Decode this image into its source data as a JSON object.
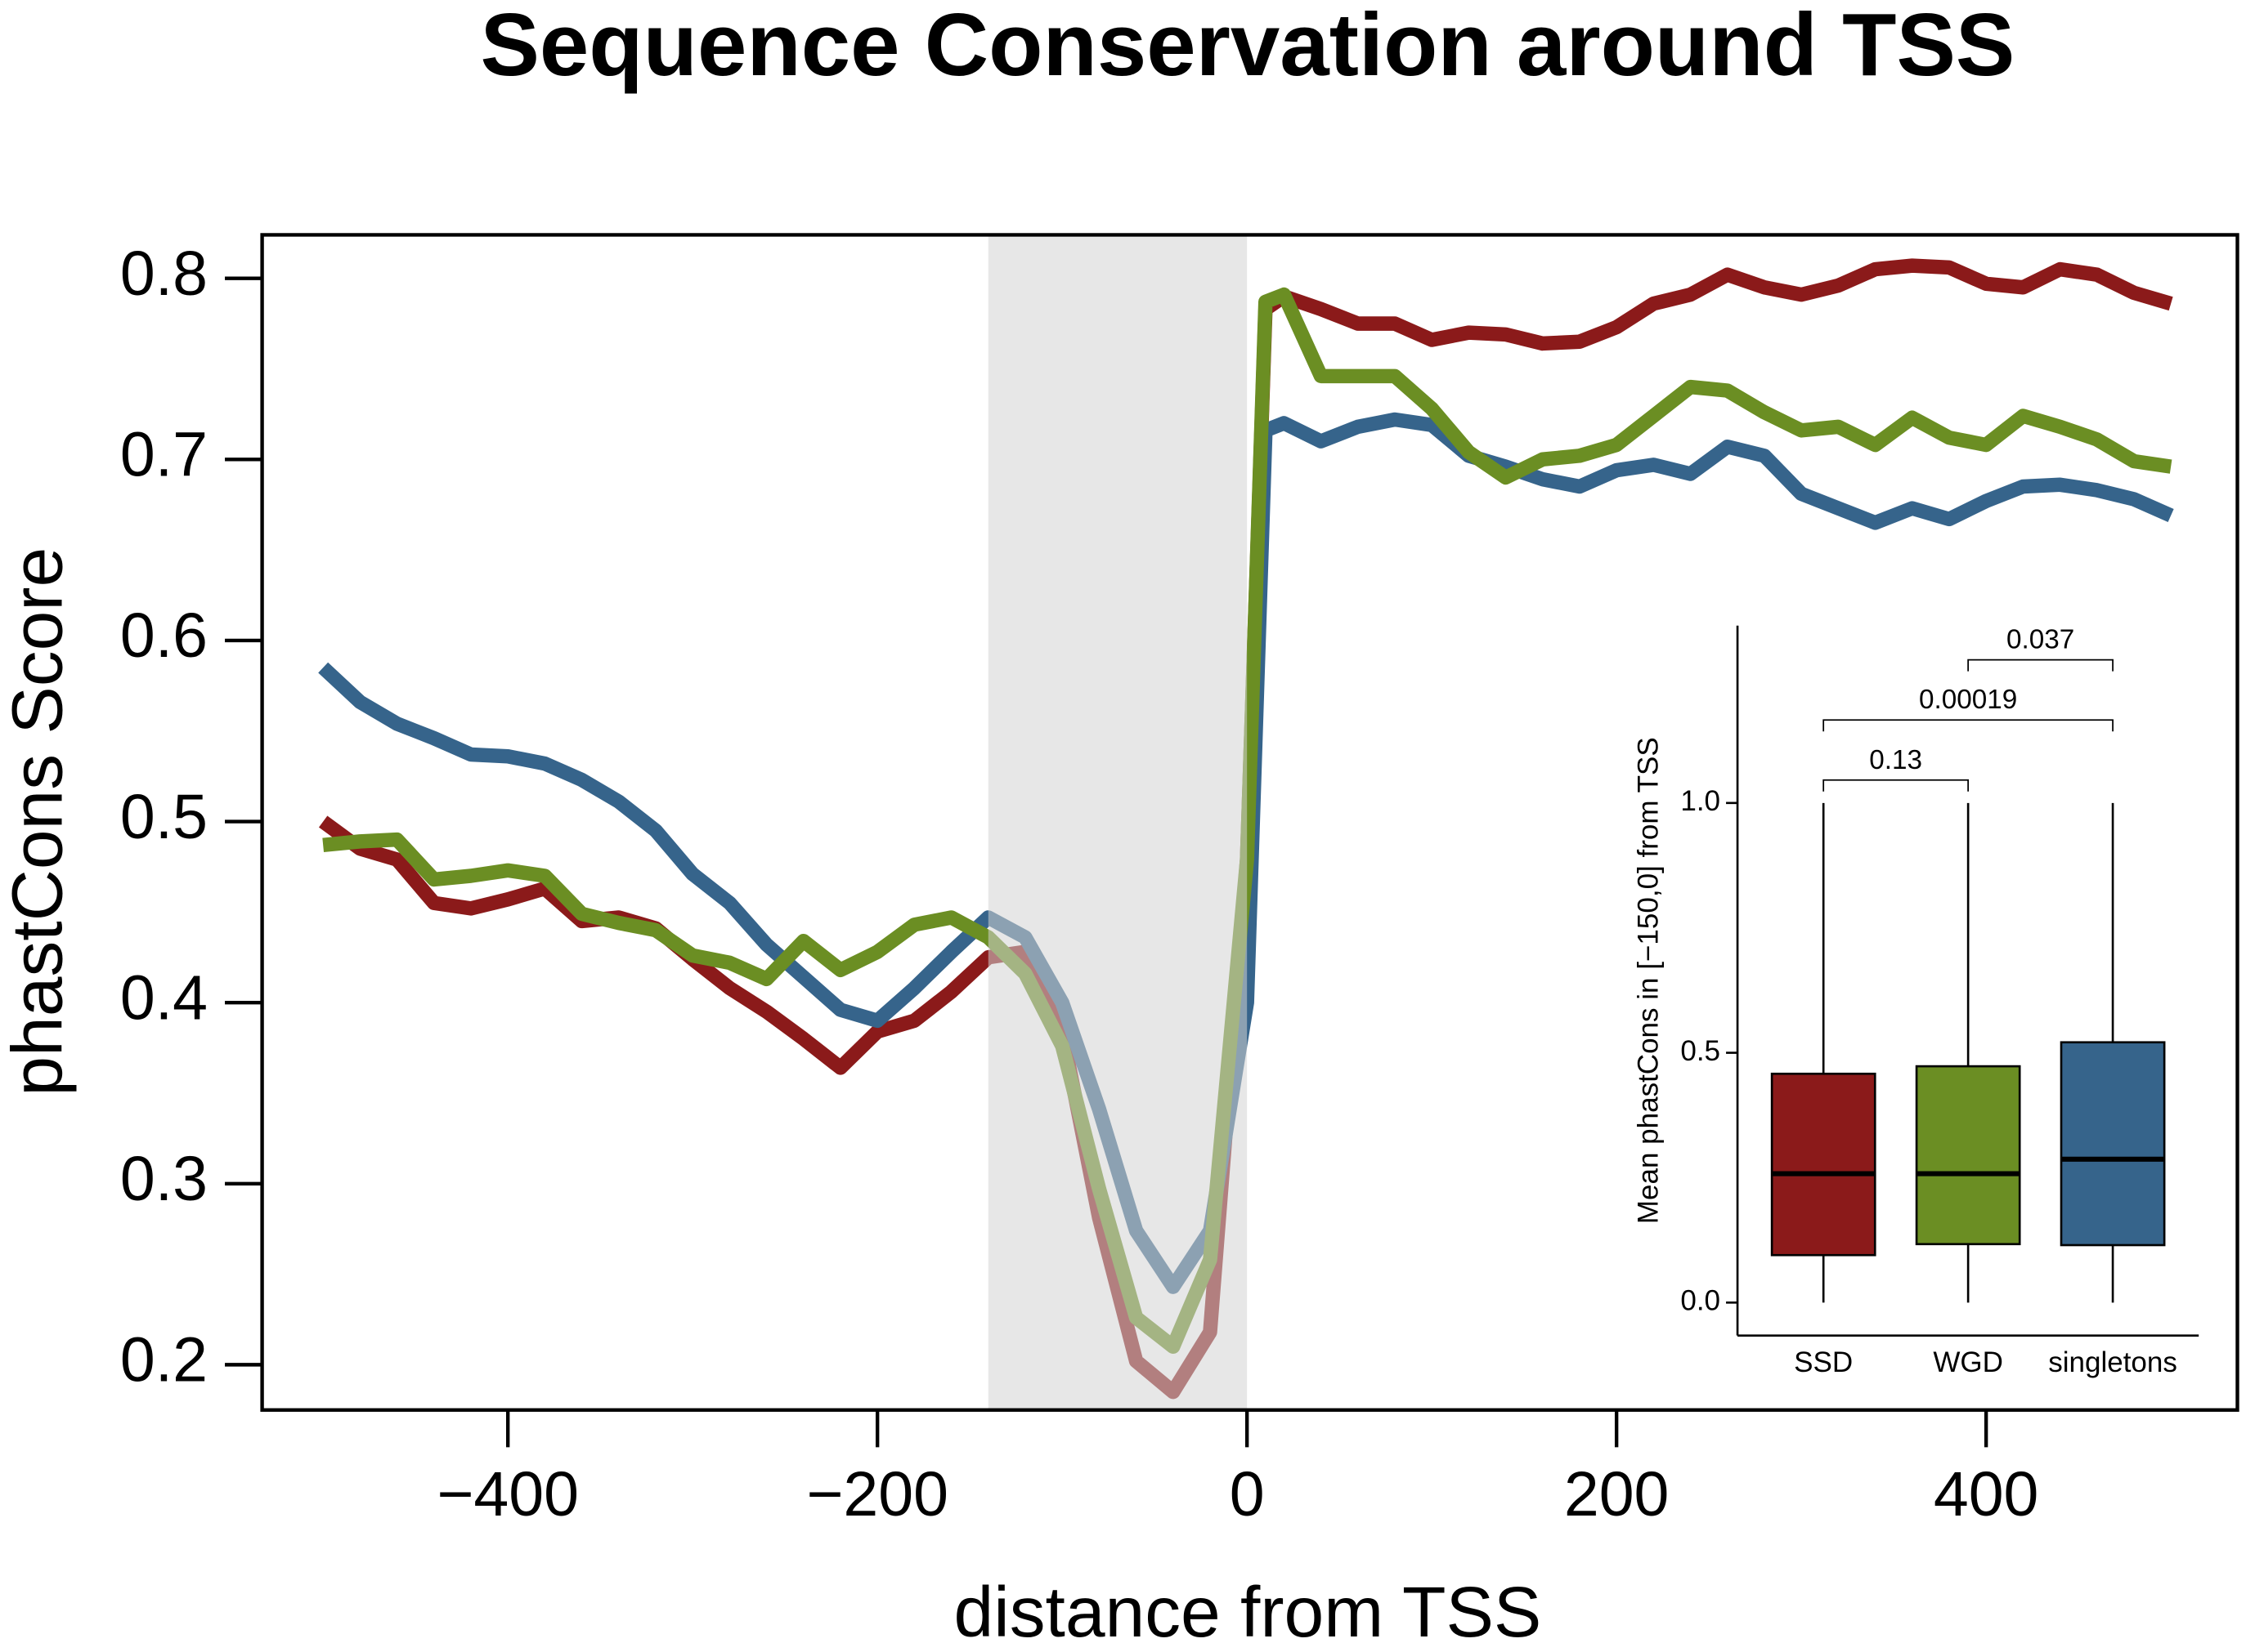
{
  "chart_data": [
    {
      "type": "line",
      "title": "Sequence Conservation around TSS",
      "x_label": "distance from TSS",
      "y_label": "phastCons Score",
      "x": [
        -500,
        -480,
        -460,
        -440,
        -420,
        -400,
        -380,
        -360,
        -340,
        -320,
        -300,
        -280,
        -260,
        -240,
        -220,
        -200,
        -180,
        -160,
        -140,
        -120,
        -100,
        -80,
        -60,
        -40,
        -20,
        0,
        10,
        20,
        40,
        60,
        80,
        100,
        120,
        140,
        160,
        180,
        200,
        220,
        240,
        260,
        280,
        300,
        320,
        340,
        360,
        380,
        400,
        420,
        440,
        460,
        480,
        500
      ],
      "series": [
        {
          "color": "#8b1a1a",
          "values": [
            0.5,
            0.485,
            0.479,
            0.455,
            0.452,
            0.457,
            0.463,
            0.445,
            0.447,
            0.441,
            0.424,
            0.408,
            0.395,
            0.38,
            0.364,
            0.384,
            0.39,
            0.406,
            0.425,
            0.428,
            0.384,
            0.281,
            0.202,
            0.185,
            0.218,
            0.479,
            0.783,
            0.79,
            0.783,
            0.775,
            0.775,
            0.766,
            0.77,
            0.769,
            0.764,
            0.765,
            0.773,
            0.786,
            0.791,
            0.802,
            0.795,
            0.791,
            0.796,
            0.805,
            0.807,
            0.806,
            0.797,
            0.795,
            0.805,
            0.802,
            0.792,
            0.786
          ]
        },
        {
          "color": "#36648b",
          "values": [
            0.585,
            0.566,
            0.554,
            0.546,
            0.537,
            0.536,
            0.532,
            0.523,
            0.511,
            0.495,
            0.471,
            0.455,
            0.432,
            0.414,
            0.396,
            0.39,
            0.408,
            0.428,
            0.447,
            0.436,
            0.4,
            0.341,
            0.274,
            0.243,
            0.274,
            0.4,
            0.716,
            0.72,
            0.71,
            0.718,
            0.722,
            0.719,
            0.702,
            0.696,
            0.689,
            0.685,
            0.694,
            0.697,
            0.692,
            0.707,
            0.702,
            0.681,
            0.673,
            0.665,
            0.673,
            0.667,
            0.677,
            0.685,
            0.686,
            0.683,
            0.678,
            0.669
          ]
        },
        {
          "color": "#6b8e23",
          "values": [
            0.487,
            0.489,
            0.49,
            0.468,
            0.47,
            0.473,
            0.47,
            0.449,
            0.444,
            0.44,
            0.426,
            0.422,
            0.413,
            0.434,
            0.418,
            0.428,
            0.443,
            0.447,
            0.436,
            0.416,
            0.376,
            0.297,
            0.226,
            0.21,
            0.258,
            0.479,
            0.787,
            0.791,
            0.746,
            0.746,
            0.746,
            0.728,
            0.704,
            0.69,
            0.7,
            0.702,
            0.708,
            0.724,
            0.74,
            0.738,
            0.726,
            0.716,
            0.718,
            0.708,
            0.723,
            0.712,
            0.708,
            0.724,
            0.718,
            0.711,
            0.699,
            0.696
          ]
        }
      ],
      "shade": {
        "range": [
          -140,
          0
        ],
        "color": "#d4d3d4"
      },
      "xlim": [
        -533,
        536
      ],
      "ylim": [
        0.175,
        0.824
      ],
      "xticks": [
        {
          "value": -400,
          "label": "−400"
        },
        {
          "value": -200,
          "label": "−200"
        },
        0,
        200,
        400
      ],
      "yticks": [
        0.2,
        0.3,
        0.4,
        0.5,
        0.6,
        0.7,
        0.8
      ],
      "grid": false
    },
    {
      "type": "box",
      "y_label": "Mean phastCons in [−150,0] from TSS",
      "categories": [
        "SSD",
        "WGD",
        "singletons"
      ],
      "colors": [
        "#8b1a1a",
        "#6b8e23",
        "#36648b"
      ],
      "min": [
        0,
        0,
        0
      ],
      "q1": [
        0.095,
        0.117,
        0.115
      ],
      "median": [
        0.258,
        0.258,
        0.287
      ],
      "q3": [
        0.458,
        0.473,
        0.521
      ],
      "max": [
        1.0,
        1.0,
        1.0
      ],
      "ylim": [
        -0.066,
        1.355
      ],
      "yticks": [
        {
          "value": 0,
          "label": "0.0"
        },
        0.5,
        {
          "value": 1,
          "label": "1.0"
        }
      ],
      "brackets": [
        {
          "from": 0,
          "to": 1,
          "label": "0.13"
        },
        {
          "from": 0,
          "to": 2,
          "label": "0.00019"
        },
        {
          "from": 1,
          "to": 2,
          "label": "0.037"
        }
      ]
    }
  ]
}
